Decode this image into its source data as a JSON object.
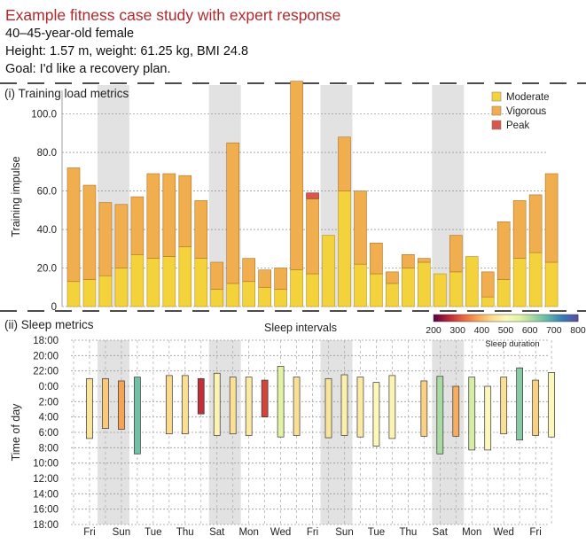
{
  "header": {
    "title": "Example fitness case study with expert response",
    "profile": "40–45-year-old female",
    "stats": "Height: 1.57 m, weight: 61.25 kg, BMI 24.8",
    "goal": "Goal: I'd like a recovery plan."
  },
  "colors": {
    "moderate": "#f3d23b",
    "vigorous": "#f1ae4f",
    "peak": "#d8564e",
    "shade": "#e2e2e2"
  },
  "chart_data": [
    {
      "type": "bar",
      "panel_label": "(i) Training load metrics",
      "ylabel": "Training impulse",
      "ylim": [
        0,
        115
      ],
      "yticks": [
        0,
        20,
        40,
        60,
        80,
        100
      ],
      "ytick_labels": [
        "0",
        "20.0",
        "40.0",
        "60.0",
        "80.0",
        "100.0"
      ],
      "legend": [
        "Moderate",
        "Vigorous",
        "Peak"
      ],
      "legend_position": "top-right",
      "shaded_days": [
        2,
        9,
        16,
        23
      ],
      "series": [
        {
          "name": "Moderate",
          "values": [
            13,
            14,
            16,
            20,
            27,
            25,
            26,
            31,
            25,
            9,
            12,
            13,
            10,
            9,
            19,
            17,
            37,
            60,
            22,
            17,
            12,
            20,
            23,
            17,
            18,
            26,
            5,
            14,
            25,
            28,
            23
          ]
        },
        {
          "name": "Vigorous",
          "values": [
            59,
            49,
            38,
            33,
            30,
            44,
            43,
            37,
            30,
            14,
            73,
            12,
            9,
            11,
            98,
            39,
            0,
            28,
            38,
            16,
            6,
            7,
            2,
            0,
            19,
            0,
            13,
            30,
            30,
            30,
            46
          ]
        },
        {
          "name": "Peak",
          "values": [
            0,
            0,
            0,
            0,
            0,
            0,
            0,
            0,
            0,
            0,
            0,
            0,
            0,
            0,
            0,
            3,
            0,
            0,
            0,
            0,
            0,
            0,
            0,
            0,
            0,
            0,
            0,
            0,
            0,
            0,
            0
          ]
        }
      ]
    },
    {
      "type": "interval",
      "panel_label": "(ii) Sleep metrics",
      "title": "Sleep intervals",
      "ylabel": "Time of day",
      "y_tick_labels": [
        "18:00",
        "20:00",
        "22:00",
        "0:00",
        "2:00",
        "4:00",
        "6:00",
        "8:00",
        "10:00",
        "12:00",
        "14:00",
        "16:00",
        "18:00"
      ],
      "x_labels": [
        "Fri",
        "Sun",
        "Tue",
        "Thu",
        "Sat",
        "Mon",
        "Wed",
        "Fri",
        "Sun",
        "Tue",
        "Thu",
        "Sat",
        "Mon",
        "Wed",
        "Fri"
      ],
      "colorbar_label": "Sleep duration",
      "colorbar_ticks": [
        "200",
        "300",
        "400",
        "500",
        "600",
        "700",
        "800"
      ],
      "colorbar_range": [
        200,
        800
      ],
      "shaded_days": [
        2,
        9,
        16,
        23
      ],
      "sleep_start_hours_after_18": [
        5.0,
        5.0,
        5.3,
        4.8,
        null,
        4.6,
        4.6,
        5.0,
        4.3,
        4.8,
        4.8,
        5.2,
        3.4,
        4.8,
        null,
        5.0,
        4.5,
        4.8,
        5.5,
        4.6,
        null,
        5.3,
        4.7,
        6.0,
        4.8,
        6.0,
        4.8,
        3.6,
        5.2,
        4.2
      ],
      "sleep_end_hours_after_18": [
        12.8,
        11.5,
        11.6,
        14.8,
        null,
        12.2,
        12.2,
        9.6,
        12.4,
        12.2,
        12.4,
        10.0,
        12.6,
        12.4,
        null,
        12.7,
        12.4,
        12.6,
        13.8,
        12.8,
        null,
        12.5,
        14.8,
        12.5,
        14.3,
        14.3,
        12.2,
        13.0,
        12.4,
        12.6
      ],
      "sleep_duration_minutes": [
        460,
        420,
        380,
        660,
        null,
        440,
        450,
        270,
        490,
        450,
        470,
        290,
        555,
        450,
        null,
        460,
        480,
        470,
        500,
        490,
        null,
        430,
        610,
        390,
        570,
        500,
        450,
        640,
        430,
        500
      ]
    }
  ]
}
